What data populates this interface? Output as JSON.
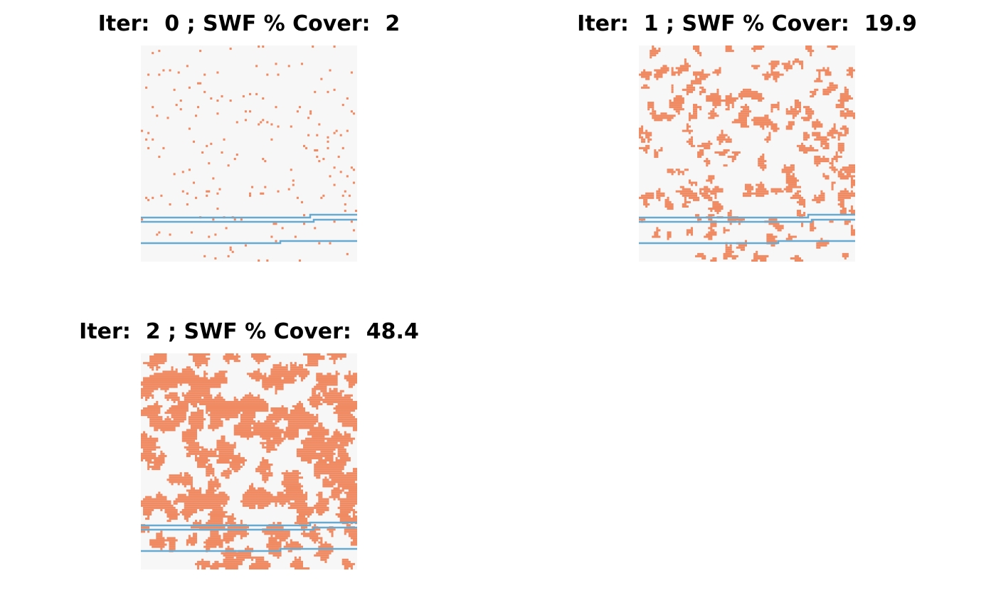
{
  "chart_data": [
    {
      "type": "heatmap",
      "title": "Iter:  0 ; SWF % Cover:  2",
      "iteration": 0,
      "percent_cover": 2,
      "grid_size": 100
    },
    {
      "type": "heatmap",
      "title": "Iter:  1 ; SWF % Cover:  19.9",
      "iteration": 1,
      "percent_cover": 19.9,
      "grid_size": 100
    },
    {
      "type": "heatmap",
      "title": "Iter:  2 ; SWF % Cover:  48.4",
      "iteration": 2,
      "percent_cover": 48.4,
      "grid_size": 100
    }
  ],
  "colors": {
    "background": "#f7f7f7",
    "cover": "#ef8a62",
    "stream": "#67a9cf"
  }
}
